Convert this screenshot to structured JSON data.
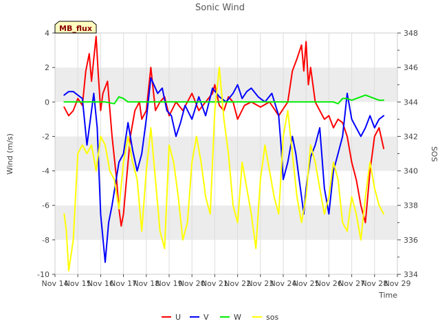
{
  "chart_data": {
    "type": "line",
    "title": "Sonic Wind",
    "station_label": "MB_flux",
    "xlabel": "Time",
    "ylabel_left": "Wind (m/s)",
    "ylabel_right": "SOS",
    "xlim": [
      14,
      29
    ],
    "ylim_left": [
      -10,
      4
    ],
    "ylim_right": [
      334,
      348
    ],
    "x_ticks": [
      "Nov 14",
      "Nov 15",
      "Nov 16",
      "Nov 17",
      "Nov 18",
      "Nov 19",
      "Nov 20",
      "Nov 21",
      "Nov 22",
      "Nov 23",
      "Nov 24",
      "Nov 25",
      "Nov 26",
      "Nov 27",
      "Nov 28",
      "Nov 29"
    ],
    "y_ticks_left": [
      "-10",
      "-8",
      "-6",
      "-4",
      "-2",
      "0",
      "2",
      "4"
    ],
    "y_ticks_right": [
      "334",
      "336",
      "338",
      "340",
      "342",
      "344",
      "346",
      "348"
    ],
    "grid": "horizontal bands",
    "legend_position": "bottom-center",
    "series": [
      {
        "name": "U",
        "color": "#ff0000",
        "axis": "left",
        "x": [
          14.4,
          14.6,
          14.8,
          15.0,
          15.2,
          15.35,
          15.5,
          15.6,
          15.7,
          15.8,
          15.9,
          16.0,
          16.1,
          16.3,
          16.5,
          16.7,
          16.8,
          16.9,
          17.0,
          17.1,
          17.3,
          17.5,
          17.7,
          17.8,
          18.0,
          18.2,
          18.4,
          18.6,
          18.8,
          19.0,
          19.3,
          19.6,
          20.0,
          20.3,
          20.6,
          20.9,
          21.0,
          21.2,
          21.4,
          21.6,
          21.8,
          22.0,
          22.3,
          22.6,
          23.0,
          23.4,
          23.8,
          24.2,
          24.4,
          24.6,
          24.8,
          24.9,
          25.0,
          25.1,
          25.2,
          25.4,
          25.6,
          25.8,
          26.0,
          26.2,
          26.4,
          26.6,
          26.8,
          27.0,
          27.2,
          27.4,
          27.6,
          27.8,
          28.0,
          28.2,
          28.4
        ],
        "y": [
          -0.3,
          -0.8,
          -0.5,
          0.2,
          -0.2,
          1.8,
          2.8,
          1.2,
          2.5,
          3.8,
          1.5,
          -0.5,
          0.5,
          1.2,
          -2.0,
          -4.5,
          -6.2,
          -7.2,
          -6.5,
          -5.0,
          -2.0,
          -0.5,
          0.0,
          -1.0,
          -0.5,
          2.0,
          -0.5,
          0.0,
          0.3,
          -0.8,
          0.0,
          -0.5,
          0.5,
          -0.5,
          0.0,
          0.5,
          1.0,
          -0.2,
          -0.5,
          0.3,
          0.0,
          -1.0,
          -0.2,
          0.0,
          -0.3,
          0.0,
          -0.8,
          0.0,
          1.8,
          2.5,
          3.3,
          1.8,
          3.5,
          1.0,
          2.0,
          0.0,
          -0.5,
          -1.0,
          -0.8,
          -1.5,
          -1.0,
          -1.2,
          -2.0,
          -3.5,
          -4.5,
          -6.0,
          -7.0,
          -4.0,
          -2.0,
          -1.5,
          -2.7
        ]
      },
      {
        "name": "V",
        "color": "#0000ff",
        "axis": "left",
        "x": [
          14.4,
          14.6,
          14.8,
          15.0,
          15.2,
          15.4,
          15.55,
          15.7,
          15.85,
          16.0,
          16.2,
          16.35,
          16.5,
          16.8,
          17.0,
          17.2,
          17.4,
          17.6,
          17.8,
          18.0,
          18.2,
          18.5,
          18.7,
          18.9,
          19.1,
          19.3,
          19.5,
          19.7,
          20.0,
          20.3,
          20.6,
          20.9,
          21.2,
          21.5,
          21.8,
          22.0,
          22.2,
          22.4,
          22.6,
          22.9,
          23.2,
          23.5,
          23.8,
          23.9,
          24.0,
          24.2,
          24.4,
          24.55,
          24.7,
          24.8,
          24.9,
          25.0,
          25.2,
          25.4,
          25.6,
          25.8,
          26.0,
          26.2,
          26.4,
          26.6,
          26.8,
          27.0,
          27.2,
          27.4,
          27.6,
          27.8,
          28.0,
          28.2,
          28.4
        ],
        "y": [
          0.4,
          0.6,
          0.6,
          0.4,
          0.2,
          -2.5,
          -1.0,
          0.5,
          -1.5,
          -6.5,
          -9.3,
          -7.0,
          -6.0,
          -3.5,
          -3.0,
          -1.2,
          -2.8,
          -4.0,
          -3.0,
          -1.0,
          1.4,
          0.5,
          0.8,
          -0.5,
          -0.8,
          -2.0,
          -1.2,
          -0.2,
          -1.0,
          0.3,
          -0.8,
          0.8,
          0.3,
          0.0,
          0.5,
          1.0,
          0.2,
          0.6,
          0.8,
          0.3,
          0.0,
          0.5,
          -0.8,
          -2.5,
          -4.5,
          -3.5,
          -2.0,
          -3.0,
          -4.5,
          -5.5,
          -6.5,
          -5.0,
          -3.2,
          -2.5,
          -1.5,
          -5.0,
          -6.5,
          -4.0,
          -3.0,
          -2.0,
          0.5,
          -1.0,
          -1.5,
          -2.0,
          -1.5,
          -0.8,
          -1.5,
          -1.0,
          -0.8
        ]
      },
      {
        "name": "W",
        "color": "#00ee00",
        "axis": "left",
        "x": [
          14.4,
          15.0,
          15.6,
          16.2,
          16.6,
          16.8,
          17.0,
          17.2,
          17.6,
          18.0,
          18.6,
          19.2,
          19.8,
          20.4,
          21.0,
          21.6,
          22.2,
          22.8,
          23.4,
          24.0,
          24.6,
          25.2,
          25.8,
          26.2,
          26.4,
          26.6,
          26.8,
          27.0,
          27.2,
          27.4,
          27.6,
          27.8,
          28.0,
          28.2,
          28.4
        ],
        "y": [
          0.0,
          0.0,
          0.0,
          0.0,
          -0.1,
          0.3,
          0.2,
          0.0,
          0.0,
          0.0,
          0.0,
          0.0,
          0.0,
          0.0,
          0.0,
          0.0,
          0.0,
          0.0,
          0.0,
          0.0,
          0.0,
          0.0,
          0.0,
          0.0,
          -0.1,
          0.2,
          0.2,
          0.1,
          0.2,
          0.3,
          0.4,
          0.3,
          0.2,
          0.1,
          0.1
        ]
      },
      {
        "name": "sos",
        "color": "#ffff00",
        "axis": "right",
        "x": [
          14.4,
          14.5,
          14.6,
          14.8,
          15.0,
          15.2,
          15.4,
          15.6,
          15.8,
          16.0,
          16.2,
          16.4,
          16.6,
          16.8,
          17.0,
          17.2,
          17.4,
          17.6,
          17.8,
          18.0,
          18.2,
          18.4,
          18.6,
          18.8,
          19.0,
          19.2,
          19.4,
          19.6,
          19.8,
          20.0,
          20.2,
          20.4,
          20.6,
          20.8,
          21.0,
          21.2,
          21.4,
          21.6,
          21.8,
          22.0,
          22.2,
          22.4,
          22.6,
          22.8,
          23.0,
          23.2,
          23.4,
          23.6,
          23.8,
          24.0,
          24.2,
          24.4,
          24.6,
          24.8,
          25.0,
          25.2,
          25.4,
          25.6,
          25.8,
          26.0,
          26.2,
          26.4,
          26.6,
          26.8,
          27.0,
          27.2,
          27.4,
          27.6,
          27.8,
          28.0,
          28.2,
          28.4
        ],
        "y": [
          337.5,
          336.5,
          334.2,
          336.0,
          341.0,
          341.5,
          341.0,
          341.5,
          340.0,
          342.0,
          341.5,
          340.0,
          339.5,
          337.8,
          340.5,
          342.0,
          340.5,
          339.5,
          336.5,
          340.0,
          342.5,
          339.5,
          336.5,
          335.5,
          341.5,
          340.5,
          338.5,
          336.0,
          337.0,
          340.5,
          342.0,
          340.5,
          338.5,
          337.5,
          343.5,
          346.0,
          343.0,
          341.0,
          338.0,
          337.0,
          340.5,
          339.0,
          337.5,
          335.5,
          339.5,
          341.5,
          340.0,
          338.5,
          337.5,
          342.0,
          343.5,
          341.0,
          338.5,
          337.0,
          338.5,
          341.5,
          340.5,
          339.0,
          337.5,
          338.5,
          340.5,
          339.5,
          337.0,
          336.5,
          338.5,
          337.5,
          336.0,
          338.5,
          340.5,
          339.0,
          338.0,
          337.5
        ]
      }
    ]
  }
}
